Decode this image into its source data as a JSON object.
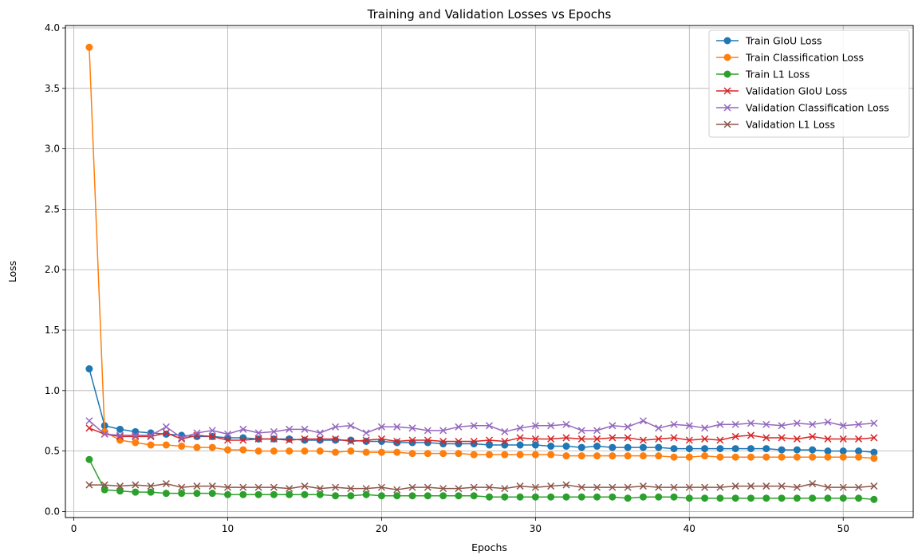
{
  "chart_data": {
    "type": "line",
    "title": "Training and Validation Losses vs Epochs",
    "xlabel": "Epochs",
    "ylabel": "Loss",
    "xlim": [
      -0.55,
      54.55
    ],
    "ylim": [
      -0.05,
      4.02
    ],
    "xticks": [
      0,
      10,
      20,
      30,
      40,
      50
    ],
    "yticks": [
      0.0,
      0.5,
      1.0,
      1.5,
      2.0,
      2.5,
      3.0,
      3.5,
      4.0
    ],
    "xtick_labels": [
      "0",
      "10",
      "20",
      "30",
      "40",
      "50"
    ],
    "ytick_labels": [
      "0.0",
      "0.5",
      "1.0",
      "1.5",
      "2.0",
      "2.5",
      "3.0",
      "3.5",
      "4.0"
    ],
    "grid": true,
    "legend_position": "top-right",
    "x": [
      1,
      2,
      3,
      4,
      5,
      6,
      7,
      8,
      9,
      10,
      11,
      12,
      13,
      14,
      15,
      16,
      17,
      18,
      19,
      20,
      21,
      22,
      23,
      24,
      25,
      26,
      27,
      28,
      29,
      30,
      31,
      32,
      33,
      34,
      35,
      36,
      37,
      38,
      39,
      40,
      41,
      42,
      43,
      44,
      45,
      46,
      47,
      48,
      49,
      50,
      51,
      52
    ],
    "series": [
      {
        "name": "Train GIoU Loss",
        "color": "#1f77b4",
        "marker": "circle",
        "values": [
          1.18,
          0.71,
          0.68,
          0.66,
          0.65,
          0.64,
          0.63,
          0.62,
          0.62,
          0.61,
          0.61,
          0.6,
          0.6,
          0.6,
          0.59,
          0.59,
          0.59,
          0.59,
          0.58,
          0.58,
          0.57,
          0.57,
          0.57,
          0.56,
          0.56,
          0.56,
          0.55,
          0.55,
          0.55,
          0.55,
          0.54,
          0.54,
          0.53,
          0.54,
          0.53,
          0.53,
          0.53,
          0.53,
          0.52,
          0.52,
          0.52,
          0.52,
          0.52,
          0.52,
          0.52,
          0.51,
          0.51,
          0.51,
          0.5,
          0.5,
          0.5,
          0.49
        ]
      },
      {
        "name": "Train Classification Loss",
        "color": "#ff7f0e",
        "marker": "circle",
        "values": [
          3.84,
          0.66,
          0.59,
          0.57,
          0.55,
          0.55,
          0.54,
          0.53,
          0.53,
          0.51,
          0.51,
          0.5,
          0.5,
          0.5,
          0.5,
          0.5,
          0.49,
          0.5,
          0.49,
          0.49,
          0.49,
          0.48,
          0.48,
          0.48,
          0.48,
          0.47,
          0.47,
          0.47,
          0.47,
          0.47,
          0.47,
          0.46,
          0.46,
          0.46,
          0.46,
          0.46,
          0.46,
          0.46,
          0.45,
          0.45,
          0.46,
          0.45,
          0.45,
          0.45,
          0.45,
          0.45,
          0.45,
          0.45,
          0.45,
          0.45,
          0.45,
          0.44
        ]
      },
      {
        "name": "Train L1 Loss",
        "color": "#2ca02c",
        "marker": "circle",
        "values": [
          0.43,
          0.18,
          0.17,
          0.16,
          0.16,
          0.15,
          0.15,
          0.15,
          0.15,
          0.14,
          0.14,
          0.14,
          0.14,
          0.14,
          0.14,
          0.14,
          0.13,
          0.13,
          0.14,
          0.13,
          0.13,
          0.13,
          0.13,
          0.13,
          0.13,
          0.13,
          0.12,
          0.12,
          0.12,
          0.12,
          0.12,
          0.12,
          0.12,
          0.12,
          0.12,
          0.11,
          0.12,
          0.12,
          0.12,
          0.11,
          0.11,
          0.11,
          0.11,
          0.11,
          0.11,
          0.11,
          0.11,
          0.11,
          0.11,
          0.11,
          0.11,
          0.1
        ]
      },
      {
        "name": "Validation GIoU Loss",
        "color": "#d62728",
        "marker": "x",
        "values": [
          0.69,
          0.64,
          0.62,
          0.62,
          0.62,
          0.65,
          0.6,
          0.63,
          0.62,
          0.59,
          0.59,
          0.6,
          0.6,
          0.59,
          0.6,
          0.6,
          0.6,
          0.58,
          0.59,
          0.6,
          0.58,
          0.59,
          0.59,
          0.58,
          0.58,
          0.58,
          0.59,
          0.58,
          0.61,
          0.6,
          0.6,
          0.61,
          0.6,
          0.6,
          0.61,
          0.61,
          0.59,
          0.6,
          0.61,
          0.59,
          0.6,
          0.59,
          0.62,
          0.63,
          0.61,
          0.61,
          0.6,
          0.62,
          0.6,
          0.6,
          0.6,
          0.61
        ]
      },
      {
        "name": "Validation Classification Loss",
        "color": "#9467bd",
        "marker": "x",
        "values": [
          0.75,
          0.64,
          0.63,
          0.63,
          0.63,
          0.7,
          0.61,
          0.65,
          0.67,
          0.64,
          0.68,
          0.65,
          0.66,
          0.68,
          0.68,
          0.65,
          0.7,
          0.71,
          0.65,
          0.7,
          0.7,
          0.69,
          0.67,
          0.67,
          0.7,
          0.71,
          0.71,
          0.66,
          0.69,
          0.71,
          0.71,
          0.72,
          0.67,
          0.67,
          0.71,
          0.7,
          0.75,
          0.69,
          0.72,
          0.71,
          0.69,
          0.72,
          0.72,
          0.73,
          0.72,
          0.71,
          0.73,
          0.72,
          0.74,
          0.71,
          0.72,
          0.73
        ]
      },
      {
        "name": "Validation L1 Loss",
        "color": "#8c564b",
        "marker": "x",
        "values": [
          0.22,
          0.22,
          0.21,
          0.22,
          0.21,
          0.23,
          0.2,
          0.21,
          0.21,
          0.2,
          0.2,
          0.2,
          0.2,
          0.19,
          0.21,
          0.19,
          0.2,
          0.19,
          0.19,
          0.2,
          0.18,
          0.2,
          0.2,
          0.19,
          0.19,
          0.2,
          0.2,
          0.19,
          0.21,
          0.2,
          0.21,
          0.22,
          0.2,
          0.2,
          0.2,
          0.2,
          0.21,
          0.2,
          0.2,
          0.2,
          0.2,
          0.2,
          0.21,
          0.21,
          0.21,
          0.21,
          0.2,
          0.23,
          0.2,
          0.2,
          0.2,
          0.21
        ]
      }
    ]
  }
}
